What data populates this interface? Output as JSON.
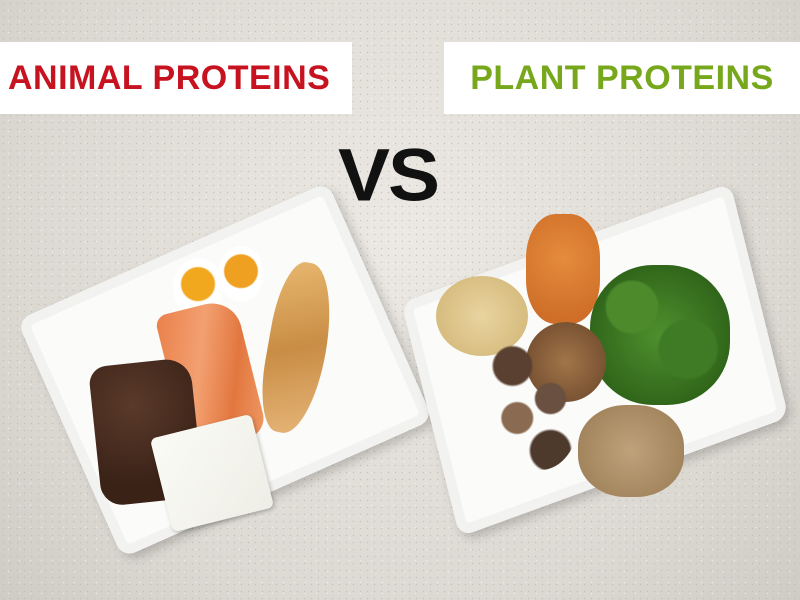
{
  "labels": {
    "animal": "ANIMAL PROTEINS",
    "plant": "PLANT PROTEINS",
    "vs": "VS"
  },
  "colors": {
    "animal": "#c7121f",
    "plant": "#77a81c",
    "vs": "#111111"
  }
}
